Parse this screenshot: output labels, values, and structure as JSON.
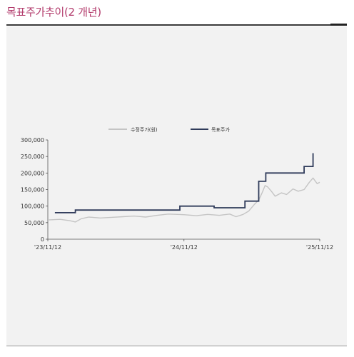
{
  "header": {
    "title": "목표주가추이(2 개년)"
  },
  "colors": {
    "title": "#b23a6b",
    "stock_price": "#c4c4c4",
    "target_price": "#2f3b5a",
    "panel": "#f2f2f2"
  },
  "chart_data": {
    "type": "line",
    "title": "",
    "xlabel": "",
    "ylabel": "",
    "ylim": [
      0,
      300000
    ],
    "yticks": [
      "0",
      "50,000",
      "100,000",
      "150,000",
      "200,000",
      "250,000",
      "300,000"
    ],
    "xticks": [
      "'23/11/12",
      "'24/11/12",
      "'25/11/12"
    ],
    "legend_position": "top-center",
    "grid": false,
    "series": [
      {
        "name": "수정주가(원)",
        "color": "#c4c4c4",
        "points": [
          [
            "'23/11/12",
            58000
          ],
          [
            "'23/12/15",
            60000
          ],
          [
            "'24/01/10",
            56000
          ],
          [
            "'24/01/25",
            52000
          ],
          [
            "'24/02/10",
            62000
          ],
          [
            "'24/03/01",
            67000
          ],
          [
            "'24/04/01",
            64000
          ],
          [
            "'24/05/01",
            66000
          ],
          [
            "'24/06/01",
            68000
          ],
          [
            "'24/07/01",
            70000
          ],
          [
            "'24/08/01",
            67000
          ],
          [
            "'24/09/01",
            72000
          ],
          [
            "'24/10/01",
            76000
          ],
          [
            "'24/11/12",
            74000
          ],
          [
            "'24/12/15",
            71000
          ],
          [
            "'25/01/15",
            75000
          ],
          [
            "'25/02/15",
            72000
          ],
          [
            "'25/03/15",
            76000
          ],
          [
            "'25/04/01",
            68000
          ],
          [
            "'25/04/20",
            75000
          ],
          [
            "'25/05/05",
            85000
          ],
          [
            "'25/05/20",
            105000
          ],
          [
            "'25/06/01",
            118000
          ],
          [
            "'25/06/10",
            140000
          ],
          [
            "'25/06/18",
            162000
          ],
          [
            "'25/06/25",
            158000
          ],
          [
            "'25/07/05",
            145000
          ],
          [
            "'25/07/15",
            130000
          ],
          [
            "'25/08/01",
            140000
          ],
          [
            "'25/08/15",
            135000
          ],
          [
            "'25/09/01",
            152000
          ],
          [
            "'25/09/15",
            145000
          ],
          [
            "'25/10/01",
            150000
          ],
          [
            "'25/10/15",
            172000
          ],
          [
            "'25/10/25",
            185000
          ],
          [
            "'25/11/05",
            168000
          ],
          [
            "'25/11/12",
            172000
          ]
        ]
      },
      {
        "name": "목표주가",
        "color": "#2f3b5a",
        "step": true,
        "points": [
          [
            "'23/12/01",
            80000
          ],
          [
            "'24/01/25",
            80000
          ],
          [
            "'24/01/25",
            88000
          ],
          [
            "'24/11/01",
            88000
          ],
          [
            "'24/11/01",
            100000
          ],
          [
            "'25/02/01",
            100000
          ],
          [
            "'25/02/01",
            95000
          ],
          [
            "'25/04/25",
            95000
          ],
          [
            "'25/04/25",
            115000
          ],
          [
            "'25/06/01",
            115000
          ],
          [
            "'25/06/01",
            175000
          ],
          [
            "'25/06/20",
            175000
          ],
          [
            "'25/06/20",
            200000
          ],
          [
            "'25/10/01",
            200000
          ],
          [
            "'25/10/01",
            220000
          ],
          [
            "'25/10/25",
            220000
          ],
          [
            "'25/10/25",
            260000
          ]
        ]
      }
    ]
  }
}
